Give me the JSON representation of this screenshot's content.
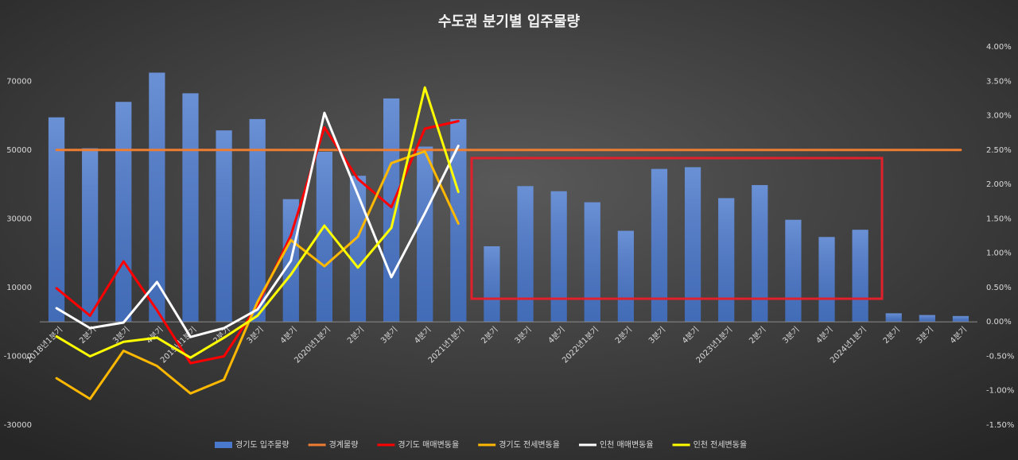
{
  "chart_data": {
    "type": "combo",
    "title": "수도권 분기별 입주물량",
    "categories": [
      "2018년1분기",
      "2분기",
      "3분기",
      "4분기",
      "2019년1분기",
      "2분기",
      "3분기",
      "4분기",
      "2020년1분기",
      "2분기",
      "3분기",
      "4분기",
      "2021년1분기",
      "2분기",
      "3분기",
      "4분기",
      "2022년1분기",
      "2분기",
      "3분기",
      "4분기",
      "2023년1분기",
      "2분기",
      "3분기",
      "4분기",
      "2024년1분기",
      "2분기",
      "3분기",
      "4분기"
    ],
    "ylim": [
      -30000,
      80000
    ],
    "yticks": [
      -30000,
      -10000,
      10000,
      30000,
      50000,
      70000
    ],
    "y2lim": [
      -1.5,
      4
    ],
    "y2ticks": [
      {
        "value": -1.5,
        "label": "-1.50%"
      },
      {
        "value": -1,
        "label": "-1.00%"
      },
      {
        "value": -0.5,
        "label": "-0.50%"
      },
      {
        "value": 0,
        "label": "0.00%"
      },
      {
        "value": 0.5,
        "label": "0.50%"
      },
      {
        "value": 1,
        "label": "1.00%"
      },
      {
        "value": 1.5,
        "label": "1.50%"
      },
      {
        "value": 2,
        "label": "2.00%"
      },
      {
        "value": 2.5,
        "label": "2.50%"
      },
      {
        "value": 3,
        "label": "3.00%"
      },
      {
        "value": 3.5,
        "label": "3.50%"
      },
      {
        "value": 4,
        "label": "4.00%"
      }
    ],
    "legend": "bottom",
    "series": [
      {
        "name": "경기도 입주물량",
        "type": "bar",
        "color": "#4a78cc",
        "values": [
          59500,
          50500,
          64000,
          72500,
          66500,
          55700,
          59000,
          35700,
          49500,
          42500,
          65000,
          51000,
          59000,
          22000,
          39500,
          38000,
          34800,
          26500,
          44500,
          45000,
          36000,
          39800,
          29700,
          24700,
          26800,
          2500,
          2000,
          1700
        ]
      },
      {
        "name": "경계물량",
        "type": "line",
        "color": "#ed7d31",
        "values": [
          50000,
          50000,
          50000,
          50000,
          50000,
          50000,
          50000,
          50000,
          50000,
          50000,
          50000,
          50000,
          50000,
          50000,
          50000,
          50000,
          50000,
          50000,
          50000,
          50000,
          50000,
          50000,
          50000,
          50000,
          50000,
          50000,
          50000,
          50000
        ]
      },
      {
        "name": "경기도 매매변동율",
        "type": "line",
        "axis": "y2",
        "color": "#ff0000",
        "values": [
          0.49,
          0.09,
          0.88,
          0.17,
          -0.6,
          -0.5,
          0.24,
          1.26,
          2.83,
          2.08,
          1.67,
          2.81,
          2.92,
          null,
          null,
          null,
          null,
          null,
          null,
          null,
          null,
          null,
          null,
          null,
          null,
          null,
          null,
          null
        ]
      },
      {
        "name": "경기도 전세변동율",
        "type": "line",
        "axis": "y2",
        "color": "#ffb800",
        "values": [
          -0.82,
          -1.12,
          -0.42,
          -0.64,
          -1.04,
          -0.84,
          0.29,
          1.19,
          0.81,
          1.24,
          2.31,
          2.48,
          1.43,
          null,
          null,
          null,
          null,
          null,
          null,
          null,
          null,
          null,
          null,
          null,
          null,
          null,
          null,
          null
        ]
      },
      {
        "name": "인천 매매변동율",
        "type": "line",
        "axis": "y2",
        "color": "#ffffff",
        "values": [
          0.2,
          -0.09,
          -0.01,
          0.58,
          -0.22,
          -0.09,
          0.18,
          0.89,
          3.04,
          1.85,
          0.65,
          1.58,
          2.56,
          null,
          null,
          null,
          null,
          null,
          null,
          null,
          null,
          null,
          null,
          null,
          null,
          null,
          null,
          null
        ]
      },
      {
        "name": "인천 전세변동율",
        "type": "line",
        "axis": "y2",
        "color": "#ffff00",
        "values": [
          -0.21,
          -0.5,
          -0.29,
          -0.23,
          -0.52,
          -0.23,
          0.09,
          0.69,
          1.4,
          0.79,
          1.37,
          3.41,
          1.89,
          null,
          null,
          null,
          null,
          null,
          null,
          null,
          null,
          null,
          null,
          null,
          null,
          null,
          null,
          null
        ]
      }
    ]
  }
}
